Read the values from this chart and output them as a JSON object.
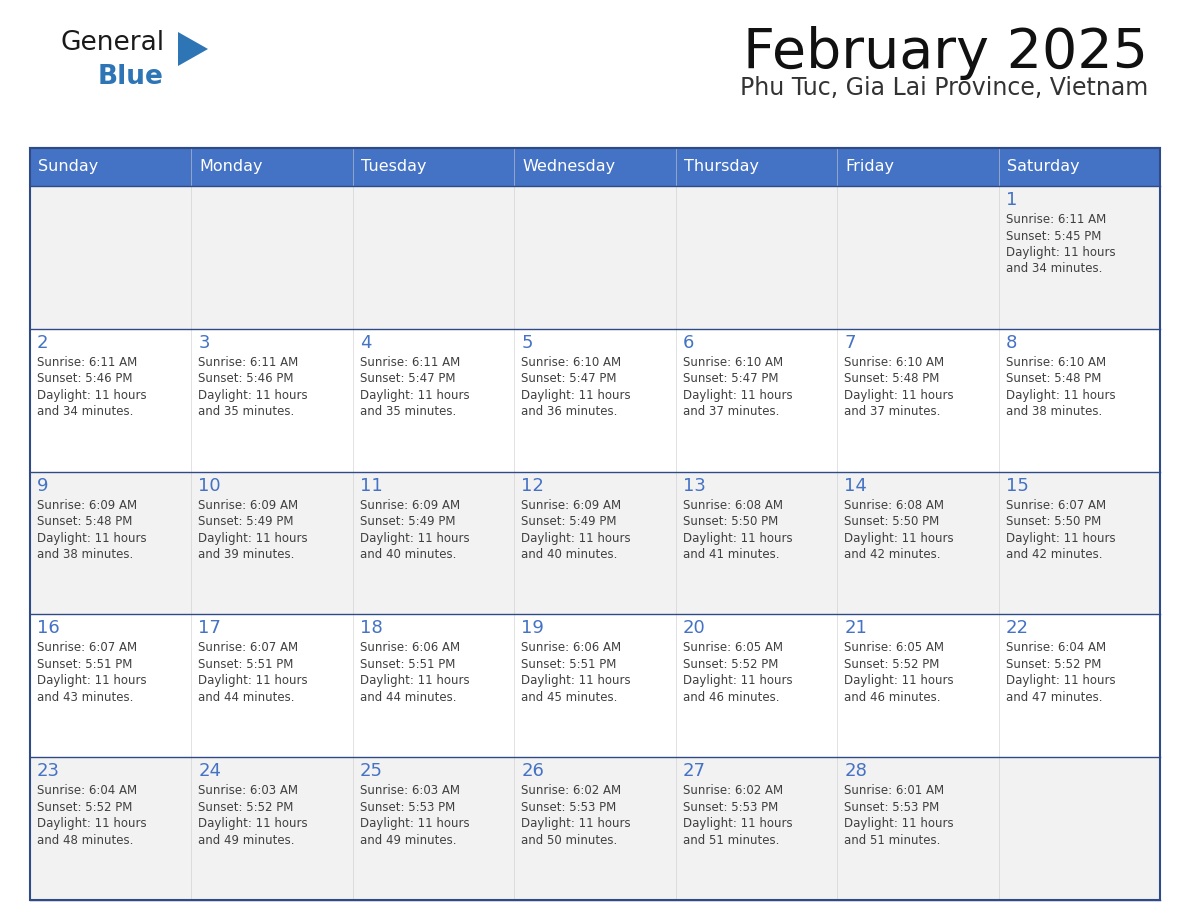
{
  "title": "February 2025",
  "subtitle": "Phu Tuc, Gia Lai Province, Vietnam",
  "days_of_week": [
    "Sunday",
    "Monday",
    "Tuesday",
    "Wednesday",
    "Thursday",
    "Friday",
    "Saturday"
  ],
  "header_bg": "#4472C4",
  "header_text": "#FFFFFF",
  "cell_bg_odd": "#F2F2F2",
  "cell_bg_even": "#FFFFFF",
  "day_number_color": "#4472C4",
  "text_color": "#404040",
  "border_color": "#2E4A87",
  "logo_general_color": "#1A1A1A",
  "logo_blue_color": "#2E75B6",
  "logo_triangle_color": "#2E75B6",
  "calendar_data": [
    [
      {
        "day": null,
        "sunrise": null,
        "sunset": null,
        "daylight": null
      },
      {
        "day": null,
        "sunrise": null,
        "sunset": null,
        "daylight": null
      },
      {
        "day": null,
        "sunrise": null,
        "sunset": null,
        "daylight": null
      },
      {
        "day": null,
        "sunrise": null,
        "sunset": null,
        "daylight": null
      },
      {
        "day": null,
        "sunrise": null,
        "sunset": null,
        "daylight": null
      },
      {
        "day": null,
        "sunrise": null,
        "sunset": null,
        "daylight": null
      },
      {
        "day": 1,
        "sunrise": "6:11 AM",
        "sunset": "5:45 PM",
        "daylight": "11 hours\nand 34 minutes."
      }
    ],
    [
      {
        "day": 2,
        "sunrise": "6:11 AM",
        "sunset": "5:46 PM",
        "daylight": "11 hours\nand 34 minutes."
      },
      {
        "day": 3,
        "sunrise": "6:11 AM",
        "sunset": "5:46 PM",
        "daylight": "11 hours\nand 35 minutes."
      },
      {
        "day": 4,
        "sunrise": "6:11 AM",
        "sunset": "5:47 PM",
        "daylight": "11 hours\nand 35 minutes."
      },
      {
        "day": 5,
        "sunrise": "6:10 AM",
        "sunset": "5:47 PM",
        "daylight": "11 hours\nand 36 minutes."
      },
      {
        "day": 6,
        "sunrise": "6:10 AM",
        "sunset": "5:47 PM",
        "daylight": "11 hours\nand 37 minutes."
      },
      {
        "day": 7,
        "sunrise": "6:10 AM",
        "sunset": "5:48 PM",
        "daylight": "11 hours\nand 37 minutes."
      },
      {
        "day": 8,
        "sunrise": "6:10 AM",
        "sunset": "5:48 PM",
        "daylight": "11 hours\nand 38 minutes."
      }
    ],
    [
      {
        "day": 9,
        "sunrise": "6:09 AM",
        "sunset": "5:48 PM",
        "daylight": "11 hours\nand 38 minutes."
      },
      {
        "day": 10,
        "sunrise": "6:09 AM",
        "sunset": "5:49 PM",
        "daylight": "11 hours\nand 39 minutes."
      },
      {
        "day": 11,
        "sunrise": "6:09 AM",
        "sunset": "5:49 PM",
        "daylight": "11 hours\nand 40 minutes."
      },
      {
        "day": 12,
        "sunrise": "6:09 AM",
        "sunset": "5:49 PM",
        "daylight": "11 hours\nand 40 minutes."
      },
      {
        "day": 13,
        "sunrise": "6:08 AM",
        "sunset": "5:50 PM",
        "daylight": "11 hours\nand 41 minutes."
      },
      {
        "day": 14,
        "sunrise": "6:08 AM",
        "sunset": "5:50 PM",
        "daylight": "11 hours\nand 42 minutes."
      },
      {
        "day": 15,
        "sunrise": "6:07 AM",
        "sunset": "5:50 PM",
        "daylight": "11 hours\nand 42 minutes."
      }
    ],
    [
      {
        "day": 16,
        "sunrise": "6:07 AM",
        "sunset": "5:51 PM",
        "daylight": "11 hours\nand 43 minutes."
      },
      {
        "day": 17,
        "sunrise": "6:07 AM",
        "sunset": "5:51 PM",
        "daylight": "11 hours\nand 44 minutes."
      },
      {
        "day": 18,
        "sunrise": "6:06 AM",
        "sunset": "5:51 PM",
        "daylight": "11 hours\nand 44 minutes."
      },
      {
        "day": 19,
        "sunrise": "6:06 AM",
        "sunset": "5:51 PM",
        "daylight": "11 hours\nand 45 minutes."
      },
      {
        "day": 20,
        "sunrise": "6:05 AM",
        "sunset": "5:52 PM",
        "daylight": "11 hours\nand 46 minutes."
      },
      {
        "day": 21,
        "sunrise": "6:05 AM",
        "sunset": "5:52 PM",
        "daylight": "11 hours\nand 46 minutes."
      },
      {
        "day": 22,
        "sunrise": "6:04 AM",
        "sunset": "5:52 PM",
        "daylight": "11 hours\nand 47 minutes."
      }
    ],
    [
      {
        "day": 23,
        "sunrise": "6:04 AM",
        "sunset": "5:52 PM",
        "daylight": "11 hours\nand 48 minutes."
      },
      {
        "day": 24,
        "sunrise": "6:03 AM",
        "sunset": "5:52 PM",
        "daylight": "11 hours\nand 49 minutes."
      },
      {
        "day": 25,
        "sunrise": "6:03 AM",
        "sunset": "5:53 PM",
        "daylight": "11 hours\nand 49 minutes."
      },
      {
        "day": 26,
        "sunrise": "6:02 AM",
        "sunset": "5:53 PM",
        "daylight": "11 hours\nand 50 minutes."
      },
      {
        "day": 27,
        "sunrise": "6:02 AM",
        "sunset": "5:53 PM",
        "daylight": "11 hours\nand 51 minutes."
      },
      {
        "day": 28,
        "sunrise": "6:01 AM",
        "sunset": "5:53 PM",
        "daylight": "11 hours\nand 51 minutes."
      },
      {
        "day": null,
        "sunrise": null,
        "sunset": null,
        "daylight": null
      }
    ]
  ]
}
